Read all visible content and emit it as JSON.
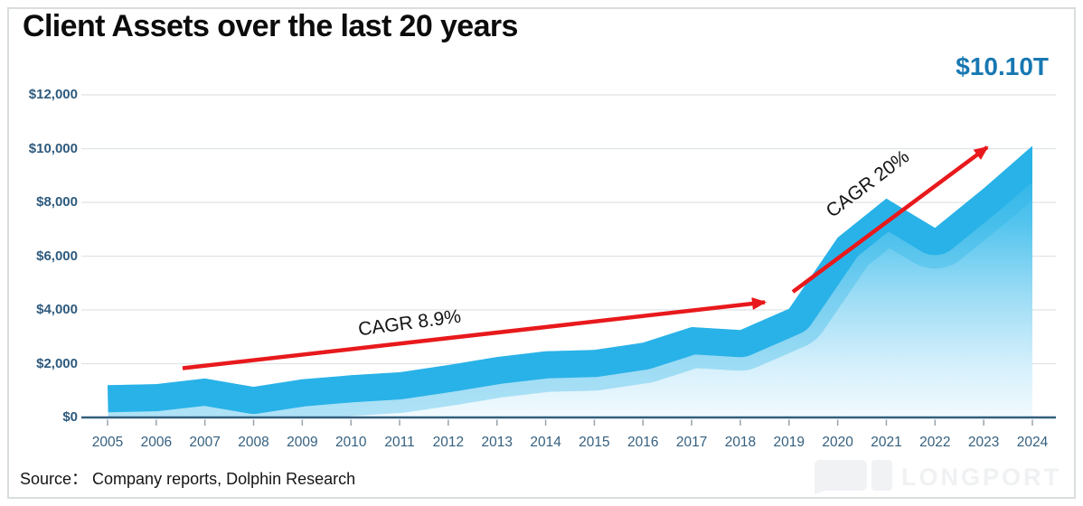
{
  "title": "Client Assets over the last 20 years",
  "highlight_value": "$10.10T",
  "source": "Source：  Company reports, Dolphin Research",
  "watermark": "LONGPORT",
  "annotations": {
    "cagr1": "CAGR 8.9%",
    "cagr2": "CAGR 20%"
  },
  "colors": {
    "area_top": "#29b2e8",
    "area_bottom": "#f2fafe",
    "arrow_red": "#e8191c",
    "highlight_blue": "#1878b2",
    "axis_label": "#2e5a7d",
    "baseline": "#335f7e",
    "gridline": "#dfe4e8",
    "tick": "#98a4ad"
  },
  "y_axis": {
    "labels": [
      "$12,000",
      "$10,000",
      "$8,000",
      "$6,000",
      "$4,000",
      "$2,000",
      "$0"
    ],
    "values": [
      12000,
      10000,
      8000,
      6000,
      4000,
      2000,
      0
    ]
  },
  "chart_data": {
    "type": "area",
    "title": "Client Assets over the last 20 years",
    "categories": [
      2005,
      2006,
      2007,
      2008,
      2009,
      2010,
      2011,
      2012,
      2013,
      2014,
      2015,
      2016,
      2017,
      2018,
      2019,
      2020,
      2021,
      2022,
      2023,
      2024
    ],
    "values": [
      1200,
      1240,
      1450,
      1140,
      1420,
      1570,
      1680,
      1950,
      2250,
      2460,
      2510,
      2780,
      3360,
      3250,
      4040,
      6690,
      8140,
      7050,
      8520,
      10100
    ],
    "ylim": [
      0,
      12000
    ],
    "grid": true,
    "legend": false,
    "end_label": "$10.10T",
    "annotation_labels": [
      "CAGR 8.9%",
      "CAGR 20%"
    ]
  }
}
